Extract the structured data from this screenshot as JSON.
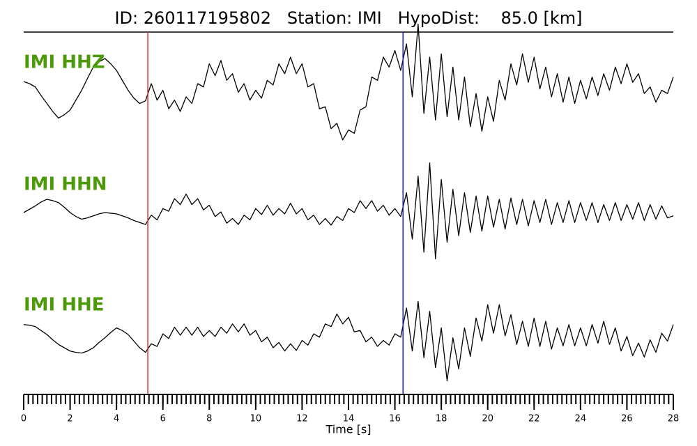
{
  "chart_data": {
    "type": "line",
    "title": "ID: 260117195802   Station: IMI   HypoDist:    85.0 [km]",
    "xlabel": "Time [s]",
    "xlim": [
      0,
      28
    ],
    "xticks": [
      0,
      2,
      4,
      6,
      8,
      10,
      12,
      14,
      16,
      18,
      20,
      22,
      24,
      26,
      28
    ],
    "xminor_step": 0.2,
    "ylim": [
      -100,
      100
    ],
    "label_color": "#4c9a0a",
    "picks": [
      {
        "x": 5.35,
        "color": "#e03030"
      },
      {
        "x": 16.35,
        "color": "#1a1ad0"
      }
    ],
    "x": [
      0,
      0.25,
      0.5,
      0.75,
      1,
      1.25,
      1.5,
      1.75,
      2,
      2.25,
      2.5,
      2.75,
      3,
      3.25,
      3.5,
      3.75,
      4,
      4.25,
      4.5,
      4.75,
      5,
      5.25,
      5.5,
      5.75,
      6,
      6.25,
      6.5,
      6.75,
      7,
      7.25,
      7.5,
      7.75,
      8,
      8.25,
      8.5,
      8.75,
      9,
      9.25,
      9.5,
      9.75,
      10,
      10.25,
      10.5,
      10.75,
      11,
      11.25,
      11.5,
      11.75,
      12,
      12.25,
      12.5,
      12.75,
      13,
      13.25,
      13.5,
      13.75,
      14,
      14.25,
      14.5,
      14.75,
      15,
      15.25,
      15.5,
      15.75,
      16,
      16.25,
      16.5,
      16.75,
      17,
      17.25,
      17.5,
      17.75,
      18,
      18.25,
      18.5,
      18.75,
      19,
      19.25,
      19.5,
      19.75,
      20,
      20.25,
      20.5,
      20.75,
      21,
      21.25,
      21.5,
      21.75,
      22,
      22.25,
      22.5,
      22.75,
      23,
      23.25,
      23.5,
      23.75,
      24,
      24.25,
      24.5,
      24.75,
      25,
      25.25,
      25.5,
      25.75,
      26,
      26.25,
      26.5,
      26.75,
      27,
      27.25,
      27.5,
      27.75,
      28
    ],
    "series": [
      {
        "name": "IMI HHZ",
        "color": "#000000",
        "values": [
          3,
          0,
          -5,
          -18,
          -30,
          -42,
          -52,
          -47,
          -40,
          -25,
          -10,
          8,
          25,
          33,
          38,
          30,
          20,
          5,
          -10,
          -22,
          -30,
          -26,
          0,
          -25,
          -10,
          -38,
          -25,
          -42,
          -20,
          -30,
          0,
          -5,
          30,
          12,
          35,
          5,
          15,
          -13,
          0,
          -25,
          -10,
          -22,
          5,
          -2,
          30,
          15,
          40,
          15,
          30,
          -5,
          0,
          -38,
          -35,
          -68,
          -60,
          -85,
          -70,
          -75,
          -40,
          -35,
          10,
          5,
          40,
          25,
          50,
          20,
          60,
          -20,
          90,
          -45,
          40,
          -55,
          45,
          -50,
          25,
          -55,
          10,
          -65,
          -15,
          -72,
          -20,
          -57,
          5,
          -25,
          30,
          -2,
          45,
          2,
          40,
          -8,
          25,
          -20,
          15,
          -28,
          10,
          -30,
          5,
          -23,
          10,
          -18,
          15,
          -10,
          25,
          0,
          30,
          2,
          15,
          -15,
          -5,
          -28,
          -10,
          -15,
          10
        ]
      },
      {
        "name": "IMI HHN",
        "color": "#000000",
        "values": [
          0,
          5,
          10,
          16,
          20,
          18,
          15,
          8,
          0,
          -6,
          -10,
          -8,
          -5,
          -2,
          0,
          -1,
          -2,
          -5,
          -8,
          -12,
          -15,
          -18,
          -4,
          -11,
          6,
          2,
          21,
          12,
          28,
          12,
          21,
          4,
          11,
          -6,
          1,
          -16,
          -9,
          -18,
          -4,
          -11,
          6,
          -3,
          11,
          -4,
          6,
          -2,
          14,
          -2,
          6,
          -11,
          -4,
          -18,
          -9,
          -19,
          -6,
          -12,
          6,
          0,
          18,
          6,
          18,
          2,
          11,
          -4,
          6,
          -6,
          30,
          -40,
          55,
          -60,
          75,
          -70,
          50,
          -45,
          35,
          -35,
          30,
          -30,
          25,
          -28,
          25,
          -22,
          20,
          -25,
          22,
          -18,
          20,
          -20,
          18,
          -15,
          20,
          -18,
          15,
          -15,
          18,
          -15,
          15,
          -12,
          15,
          -15,
          12,
          -12,
          15,
          -12,
          12,
          -10,
          15,
          -12,
          12,
          -10,
          10,
          -8,
          -5
        ]
      },
      {
        "name": "IMI HHE",
        "color": "#000000",
        "values": [
          15,
          14,
          12,
          6,
          0,
          -8,
          -15,
          -20,
          -25,
          -27,
          -28,
          -25,
          -20,
          -12,
          -5,
          3,
          10,
          6,
          0,
          -10,
          -20,
          -27,
          -14,
          -18,
          1,
          -6,
          11,
          -1,
          11,
          -1,
          11,
          -3,
          6,
          -3,
          11,
          2,
          16,
          4,
          16,
          -1,
          6,
          -11,
          -4,
          -20,
          -12,
          -25,
          -14,
          -24,
          -9,
          -16,
          1,
          -4,
          16,
          12,
          31,
          16,
          26,
          4,
          6,
          -11,
          -4,
          -18,
          -9,
          -16,
          1,
          -4,
          40,
          -25,
          50,
          -35,
          35,
          -50,
          10,
          -70,
          -5,
          -52,
          10,
          -33,
          25,
          -10,
          45,
          2,
          45,
          -2,
          30,
          -15,
          20,
          -18,
          25,
          -18,
          20,
          -22,
          10,
          -17,
          15,
          -17,
          10,
          -17,
          15,
          -13,
          20,
          -15,
          10,
          -25,
          -3,
          -32,
          -13,
          -34,
          -8,
          -27,
          2,
          -10,
          15
        ]
      }
    ]
  }
}
